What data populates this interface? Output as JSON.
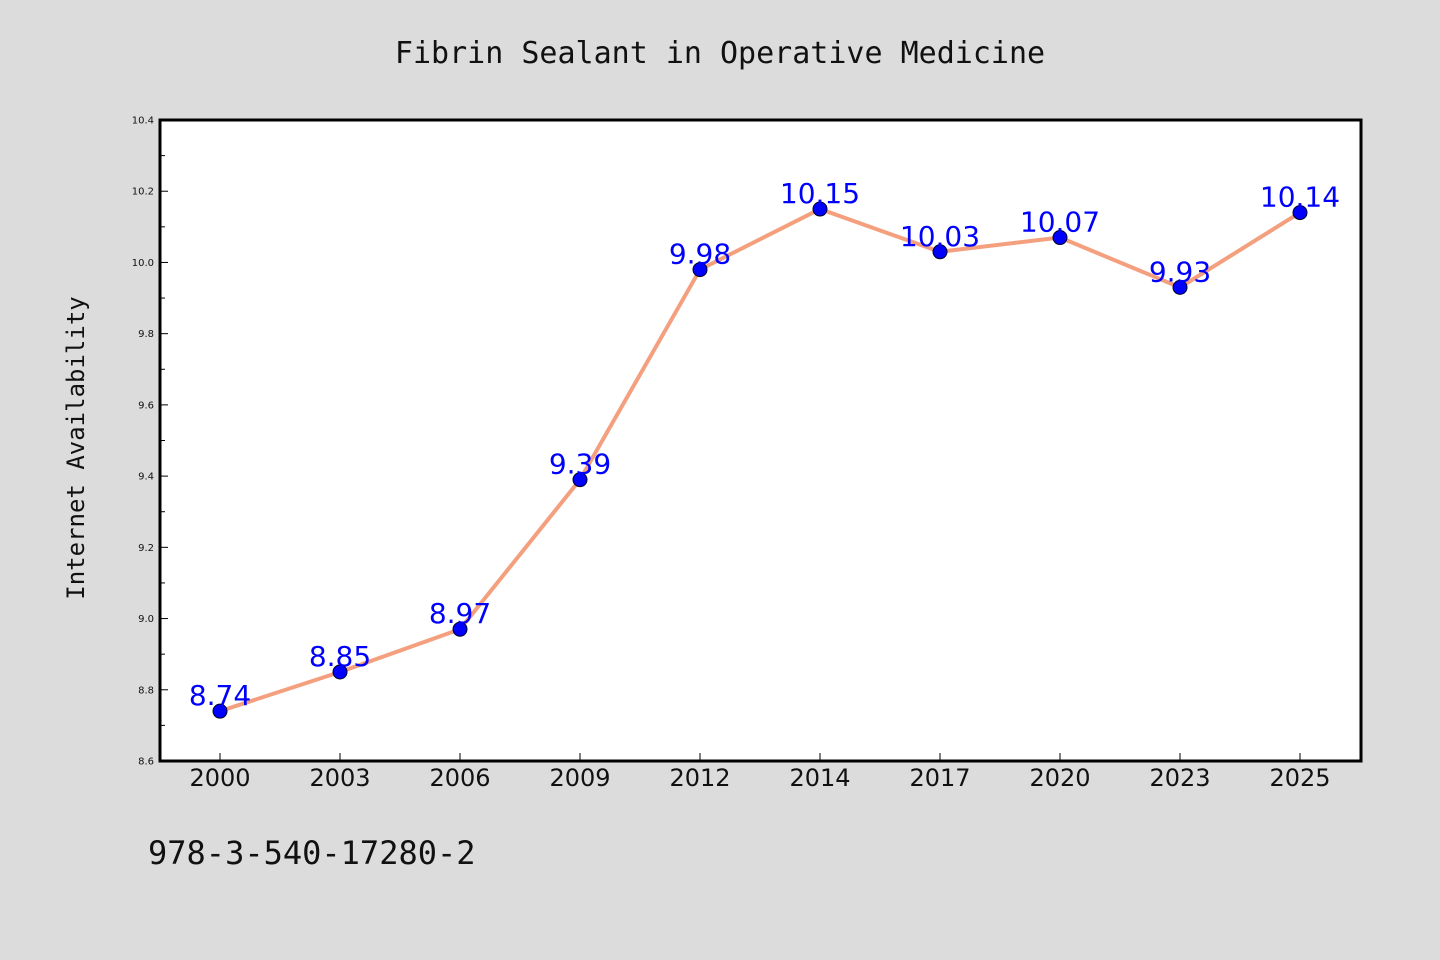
{
  "chart_data": {
    "type": "line",
    "title": "Fibrin Sealant in Operative Medicine",
    "xlabel": "",
    "ylabel": "Internet Availability",
    "categories": [
      "2000",
      "2003",
      "2006",
      "2009",
      "2012",
      "2014",
      "2017",
      "2020",
      "2023",
      "2025"
    ],
    "series": [
      {
        "values": [
          8.74,
          8.85,
          8.97,
          9.39,
          9.98,
          10.15,
          10.03,
          10.07,
          9.93,
          10.14
        ],
        "data_labels": [
          "8.74",
          "8.85",
          "8.97",
          "9.39",
          "9.98",
          "10.15",
          "10.03",
          "10.07",
          "9.93",
          "10.14"
        ],
        "line_color": "#f4a07e",
        "marker_color": "#0000ff"
      }
    ],
    "ylim": [
      8.6,
      10.4
    ],
    "yticks": [
      "8.6",
      "8.8",
      "9.0",
      "9.2",
      "9.4",
      "9.6",
      "9.8",
      "10.0",
      "10.2",
      "10.4"
    ],
    "grid": false,
    "legend": "none"
  },
  "footnote": "978-3-540-17280-2",
  "colors": {
    "background": "#dcdcdc",
    "plot_background": "#ffffff",
    "line": "#f4a07e",
    "marker": "#0000ff",
    "data_label": "#0000ff"
  }
}
